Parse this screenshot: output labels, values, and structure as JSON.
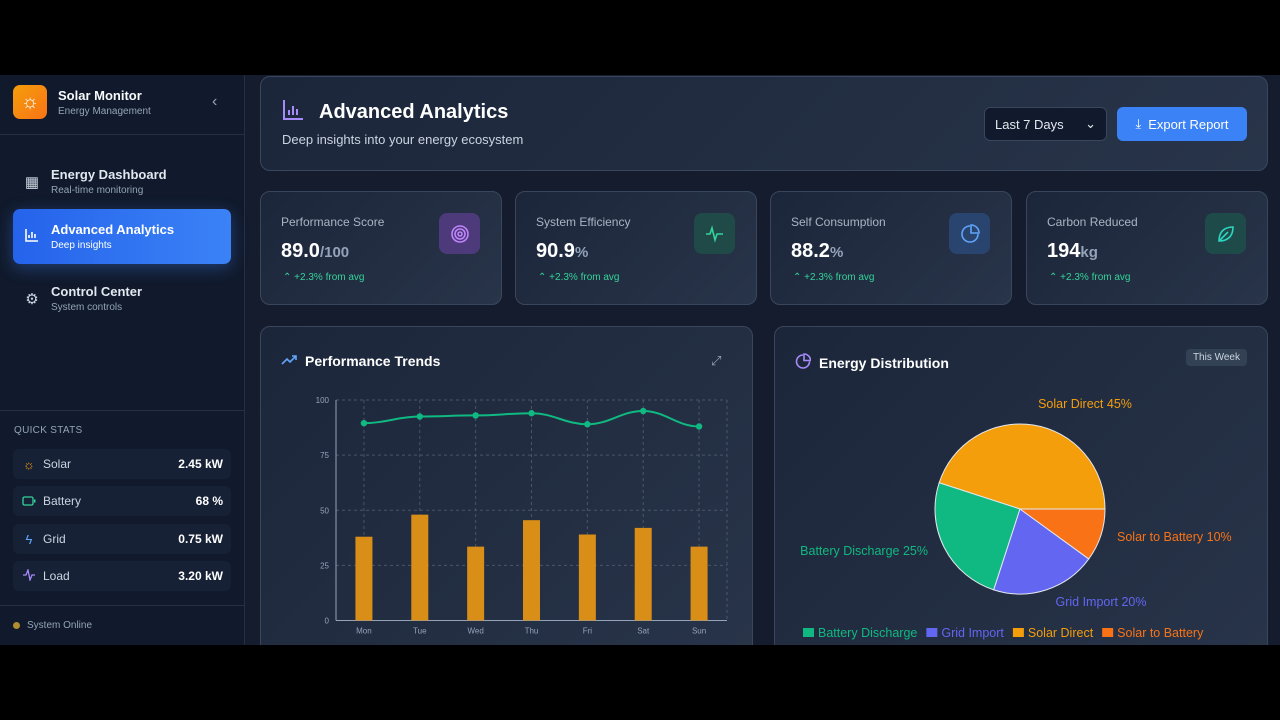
{
  "sidebar": {
    "brand_title": "Solar Monitor",
    "brand_subtitle": "Energy Management",
    "nav": [
      {
        "label": "Energy Dashboard",
        "sub": "Real-time monitoring"
      },
      {
        "label": "Advanced Analytics",
        "sub": "Deep insights",
        "active": true
      },
      {
        "label": "Control Center",
        "sub": "System controls"
      }
    ],
    "quick_stats_title": "QUICK STATS",
    "quick_stats": [
      {
        "label": "Solar",
        "value": "2.45 kW",
        "color": "#f59e0b"
      },
      {
        "label": "Battery",
        "value": "68 %",
        "color": "#34d399"
      },
      {
        "label": "Grid",
        "value": "0.75 kW",
        "color": "#60a5fa"
      },
      {
        "label": "Load",
        "value": "3.20 kW",
        "color": "#a78bfa"
      }
    ],
    "status": "System Online"
  },
  "header": {
    "title": "Advanced Analytics",
    "subtitle": "Deep insights into your energy ecosystem",
    "range": "Last 7 Days",
    "export_label": "Export Report"
  },
  "kpis": [
    {
      "label": "Performance Score",
      "value": "89.0",
      "unit": "/100",
      "change": "+2.3% from avg",
      "icon": "target-icon",
      "color": "#a855f7"
    },
    {
      "label": "System Efficiency",
      "value": "90.9",
      "unit": "%",
      "change": "+2.3% from avg",
      "icon": "activity-icon",
      "color": "#34d399"
    },
    {
      "label": "Self Consumption",
      "value": "88.2",
      "unit": "%",
      "change": "+2.3% from avg",
      "icon": "pie-chart-icon",
      "color": "#60a5fa"
    },
    {
      "label": "Carbon Reduced",
      "value": "194",
      "unit": "kg",
      "change": "+2.3% from avg",
      "icon": "leaf-icon",
      "color": "#2dd4bf"
    }
  ],
  "trends": {
    "title": "Performance Trends"
  },
  "distribution": {
    "title": "Energy Distribution",
    "badge": "This Week"
  },
  "chart_data": [
    {
      "type": "bar",
      "categories": [
        "Mon",
        "Tue",
        "Wed",
        "Thu",
        "Fri",
        "Sat",
        "Sun"
      ],
      "ylim": [
        0,
        100
      ],
      "yticks": [
        0,
        25,
        50,
        75,
        100
      ],
      "grid": true,
      "series": [
        {
          "type": "line",
          "values": [
            89.5,
            92.5,
            93,
            94,
            89,
            95,
            88
          ],
          "color": "#10b981"
        },
        {
          "type": "bar",
          "values": [
            38,
            48,
            33.5,
            45.5,
            39,
            42,
            33.5
          ],
          "color": "#d98e17"
        }
      ]
    },
    {
      "type": "pie",
      "legend": "bottom",
      "slices": [
        {
          "label": "Solar Direct",
          "value": 45,
          "color": "#f59e0b"
        },
        {
          "label": "Battery Discharge",
          "value": 25,
          "color": "#10b981"
        },
        {
          "label": "Grid Import",
          "value": 20,
          "color": "#6366f1"
        },
        {
          "label": "Solar to Battery",
          "value": 10,
          "color": "#f97316"
        }
      ],
      "legend_order": [
        "Battery Discharge",
        "Grid Import",
        "Solar Direct",
        "Solar to Battery"
      ]
    }
  ]
}
